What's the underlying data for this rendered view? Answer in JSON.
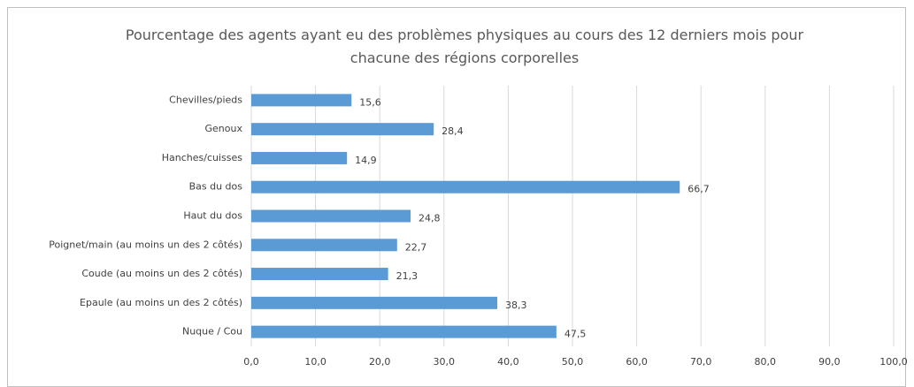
{
  "chart_data": {
    "type": "bar",
    "orientation": "horizontal",
    "title": "Pourcentage des agents ayant eu des problèmes physiques au cours des 12 derniers mois pour chacune des régions corporelles",
    "categories": [
      "Chevilles/pieds",
      "Genoux",
      "Hanches/cuisses",
      "Bas du dos",
      "Haut du dos",
      "Poignet/main (au moins un des 2 côtés)",
      "Coude (au moins un des 2 côtés)",
      "Epaule (au moins un des 2 côtés)",
      "Nuque / Cou"
    ],
    "values": [
      15.6,
      28.4,
      14.9,
      66.7,
      24.8,
      22.7,
      21.3,
      38.3,
      47.5
    ],
    "value_labels": [
      "15,6",
      "28,4",
      "14,9",
      "66,7",
      "24,8",
      "22,7",
      "21,3",
      "38,3",
      "47,5"
    ],
    "color": "#5b9bd5",
    "xlim": [
      0,
      100
    ],
    "xticks": [
      {
        "value": 0,
        "label": "0,0"
      },
      {
        "value": 10,
        "label": "10,0"
      },
      {
        "value": 20,
        "label": "20,0"
      },
      {
        "value": 30,
        "label": "30,0"
      },
      {
        "value": 40,
        "label": "40,0"
      },
      {
        "value": 50,
        "label": "50,0"
      },
      {
        "value": 60,
        "label": "60,0"
      },
      {
        "value": 70,
        "label": "70,0"
      },
      {
        "value": 80,
        "label": "80,0"
      },
      {
        "value": 90,
        "label": "90,0"
      },
      {
        "value": 100,
        "label": "100,0"
      }
    ],
    "grid": true
  }
}
